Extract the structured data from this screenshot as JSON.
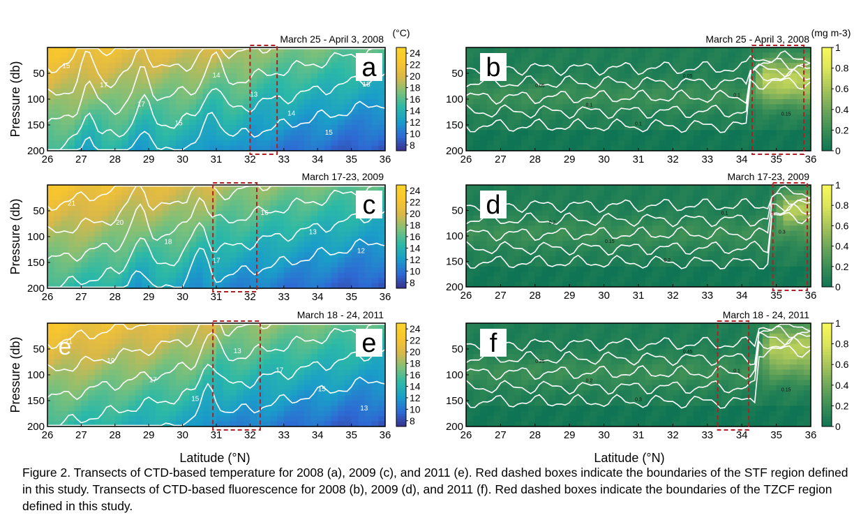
{
  "xlabel": "Latitude (°N)",
  "caption": "Figure 2. Transects of CTD-based temperature for 2008 (a), 2009 (c), and 2011 (e). Red dashed boxes indicate the boundaries of the STF region defined in this study. Transects of CTD-based fluorescence for 2008 (b), 2009 (d), and 2011 (f).  Red dashed boxes indicate the boundaries of the TZCF region defined in this study.",
  "colors": {
    "temperature_scale": [
      "#38308a",
      "#2e6ad4",
      "#1a9ec9",
      "#2cb9a6",
      "#7cc07a",
      "#d9b84a",
      "#f8c52e",
      "#fbd42a"
    ],
    "fluorescence_scale": [
      "#0e7454",
      "#3a8e56",
      "#6ea75a",
      "#a8c55a",
      "#dce65a",
      "#f7f85a"
    ],
    "contour": "#ffffff",
    "box": "#b01e23"
  },
  "chart_data": [
    {
      "type": "heatmap",
      "panel": "a",
      "variable": "temperature",
      "date_label": "March 25 - April 3, 2008",
      "ylabel": "Pressure (db)",
      "xlabel": "",
      "xlim": [
        26,
        36
      ],
      "ylim": [
        200,
        0
      ],
      "xticks": [
        "26",
        "27",
        "28",
        "29",
        "30",
        "31",
        "32",
        "33",
        "34",
        "35",
        "36"
      ],
      "yticks": [
        "50",
        "100",
        "150",
        "200"
      ],
      "colorbar": {
        "unit": "(°C)",
        "range": [
          7,
          25
        ],
        "ticks": [
          "8",
          "10",
          "12",
          "14",
          "16",
          "18",
          "20",
          "22",
          "24"
        ]
      },
      "box": {
        "lat": [
          32.0,
          32.8
        ],
        "label": "STF"
      },
      "contour_labels": [
        "15",
        "17",
        "17",
        "15",
        "14",
        "13",
        "14",
        "15",
        "18"
      ],
      "contour_levels": [
        13,
        15,
        17,
        19,
        21
      ],
      "pinch_lat": [
        27.2,
        28.8,
        30.9
      ],
      "overlay_letter": ""
    },
    {
      "type": "heatmap",
      "panel": "b",
      "variable": "fluorescence",
      "date_label": "March 25 - April 3, 2008",
      "ylabel": "",
      "xlabel": "",
      "xlim": [
        26,
        36
      ],
      "ylim": [
        200,
        0
      ],
      "xticks": [
        "26",
        "27",
        "28",
        "29",
        "30",
        "31",
        "32",
        "33",
        "34",
        "35",
        "36"
      ],
      "yticks": [
        "50",
        "100",
        "150",
        "200"
      ],
      "colorbar": {
        "unit": "(mg m-3)",
        "range": [
          0,
          1
        ],
        "ticks": [
          "0",
          "0.2",
          "0.4",
          "0.6",
          "0.8",
          "1"
        ]
      },
      "box": {
        "lat": [
          34.3,
          35.8
        ],
        "label": "TZCF"
      },
      "contour_labels": [
        "0.05",
        "0.05",
        "0.1",
        "0.1",
        "0.05",
        "0.1",
        "0.15"
      ],
      "contour_levels": [
        0.05,
        0.1,
        0.15,
        0.2,
        0.25
      ],
      "bloom": {
        "lat": [
          34.2,
          36.0
        ],
        "depth": [
          20,
          100
        ]
      }
    },
    {
      "type": "heatmap",
      "panel": "c",
      "variable": "temperature",
      "date_label": "March 17-23, 2009",
      "ylabel": "Pressure (db)",
      "xlabel": "",
      "xlim": [
        26,
        36
      ],
      "ylim": [
        200,
        0
      ],
      "xticks": [
        "26",
        "27",
        "28",
        "29",
        "30",
        "31",
        "32",
        "33",
        "34",
        "35",
        "36"
      ],
      "yticks": [
        "50",
        "100",
        "150",
        "200"
      ],
      "colorbar": {
        "unit": "",
        "range": [
          7,
          25
        ],
        "ticks": [
          "8",
          "10",
          "12",
          "14",
          "16",
          "18",
          "20",
          "22",
          "24"
        ]
      },
      "box": {
        "lat": [
          30.9,
          32.2
        ],
        "label": "STF"
      },
      "contour_labels": [
        "21",
        "20",
        "18",
        "17",
        "16",
        "13",
        "12"
      ],
      "contour_levels": [
        13,
        15,
        17,
        19,
        21
      ],
      "pinch_lat": [
        28.7,
        30.5
      ],
      "overlay_letter": ""
    },
    {
      "type": "heatmap",
      "panel": "d",
      "variable": "fluorescence",
      "date_label": "March 17-23, 2009",
      "ylabel": "",
      "xlabel": "",
      "xlim": [
        26,
        36
      ],
      "ylim": [
        200,
        0
      ],
      "xticks": [
        "26",
        "27",
        "28",
        "29",
        "30",
        "31",
        "32",
        "33",
        "34",
        "35",
        "36"
      ],
      "yticks": [
        "50",
        "100",
        "150",
        "200"
      ],
      "colorbar": {
        "unit": "",
        "range": [
          0,
          1
        ],
        "ticks": [
          "0",
          "0.2",
          "0.4",
          "0.6",
          "0.8",
          "1"
        ]
      },
      "box": {
        "lat": [
          34.9,
          35.9
        ],
        "label": "TZCF"
      },
      "contour_labels": [
        "0.1",
        "0.2",
        "0.15",
        "0.2",
        "0.1",
        "0.3"
      ],
      "contour_levels": [
        0.05,
        0.1,
        0.15,
        0.2,
        0.25
      ],
      "bloom": {
        "lat": [
          34.8,
          36.0
        ],
        "depth": [
          15,
          80
        ]
      }
    },
    {
      "type": "heatmap",
      "panel": "e",
      "variable": "temperature",
      "date_label": "March 18 - 24, 2011",
      "ylabel": "Pressure (db)",
      "xlabel": "",
      "xlim": [
        26,
        36
      ],
      "ylim": [
        200,
        0
      ],
      "xticks": [
        "26",
        "27",
        "28",
        "29",
        "30",
        "31",
        "32",
        "33",
        "34",
        "35",
        "36"
      ],
      "yticks": [
        "50",
        "100",
        "150",
        "200"
      ],
      "colorbar": {
        "unit": "",
        "range": [
          7,
          25
        ],
        "ticks": [
          "8",
          "10",
          "12",
          "14",
          "16",
          "18",
          "20",
          "22",
          "24"
        ]
      },
      "box": {
        "lat": [
          30.9,
          32.3
        ],
        "label": "STF"
      },
      "contour_labels": [
        "21",
        "19",
        "17",
        "15",
        "13",
        "17",
        "15",
        "13"
      ],
      "contour_levels": [
        13,
        15,
        17,
        19,
        21
      ],
      "pinch_lat": [
        30.8
      ],
      "overlay_letter": "e"
    },
    {
      "type": "heatmap",
      "panel": "f",
      "variable": "fluorescence",
      "date_label": "March 18 - 24, 2011",
      "ylabel": "",
      "xlabel": "",
      "xlim": [
        26,
        36
      ],
      "ylim": [
        200,
        0
      ],
      "xticks": [
        "26",
        "27",
        "28",
        "29",
        "30",
        "31",
        "32",
        "33",
        "34",
        "35",
        "36"
      ],
      "yticks": [
        "50",
        "100",
        "150",
        "200"
      ],
      "colorbar": {
        "unit": "",
        "range": [
          0,
          1
        ],
        "ticks": [
          "0",
          "0.2",
          "0.4",
          "0.6",
          "0.8",
          "1"
        ]
      },
      "box": {
        "lat": [
          33.3,
          34.2
        ],
        "label": "TZCF"
      },
      "contour_labels": [
        "0.15",
        "0.25",
        "0.2",
        "0.3",
        "0.45",
        "0.1",
        "0.15"
      ],
      "contour_levels": [
        0.05,
        0.1,
        0.15,
        0.2,
        0.25
      ],
      "bloom": {
        "lat": [
          34.4,
          36.0
        ],
        "depth": [
          5,
          90
        ]
      }
    }
  ]
}
